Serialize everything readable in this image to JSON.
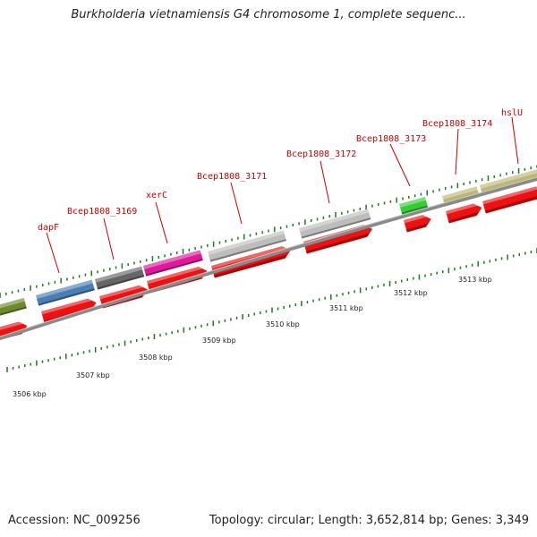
{
  "title": "Burkholderia vietnamiensis G4 chromosome 1, complete sequenc...",
  "footer": {
    "accession": "Accession: NC_009256",
    "summary": "Topology: circular; Length: 3,652,814 bp; Genes: 3,349"
  },
  "gene_labels": [
    "dapF",
    "Bcep1808_3169",
    "xerC",
    "Bcep1808_3171",
    "Bcep1808_3172",
    "Bcep1808_3173",
    "Bcep1808_3174",
    "hslU"
  ],
  "ruler": [
    "3506 kbp",
    "3507 kbp",
    "3508 kbp",
    "3509 kbp",
    "3510 kbp",
    "3511 kbp",
    "3512 kbp",
    "3513 kbp"
  ],
  "colors": {
    "arrow_red": "#ee1111",
    "gene_olive": "#6e8a2a",
    "gene_blue": "#4a7fb5",
    "gene_darkgray": "#666666",
    "gene_magenta": "#e0199a",
    "gene_lightgray": "#bdbdbd",
    "gene_green": "#33cc33",
    "gene_khaki": "#bdb776",
    "tick_green": "#1d7a1d",
    "label_red": "#cc0000"
  }
}
